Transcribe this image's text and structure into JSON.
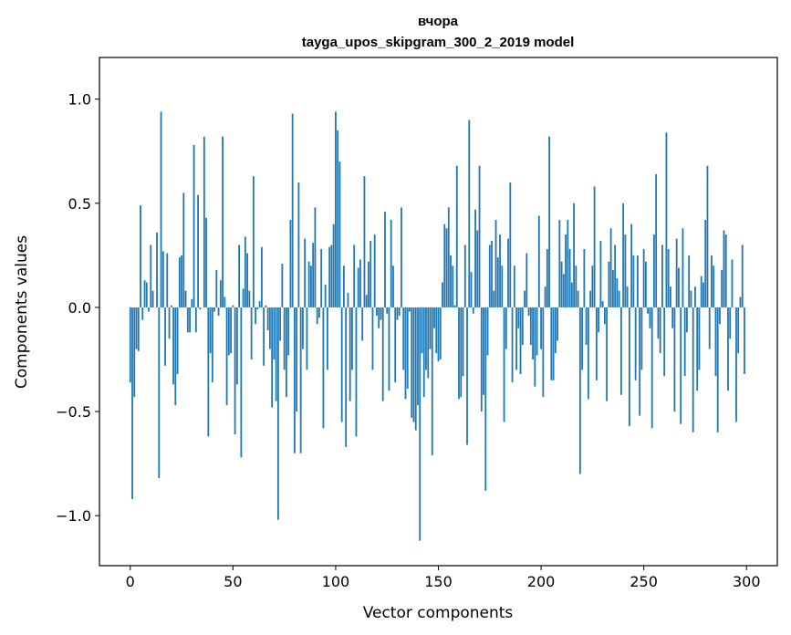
{
  "chart_data": {
    "type": "bar",
    "title": "вчора",
    "subtitle": "tayga_upos_skipgram_300_2_2019 model",
    "xlabel": "Vector components",
    "ylabel": "Components values",
    "xlim": [
      -15,
      315
    ],
    "ylim": [
      -1.24,
      1.2
    ],
    "xticks": [
      0,
      50,
      100,
      150,
      200,
      250,
      300
    ],
    "xtick_labels": [
      "0",
      "50",
      "100",
      "150",
      "200",
      "250",
      "300"
    ],
    "yticks": [
      -1.0,
      -0.5,
      0.0,
      0.5,
      1.0
    ],
    "ytick_labels": [
      "−1.0",
      "−0.5",
      "0.0",
      "0.5",
      "1.0"
    ],
    "grid": false,
    "bar_color": "#1f77b4",
    "series": [
      {
        "values": [
          -0.36,
          -0.92,
          -0.43,
          -0.2,
          -0.21,
          0.49,
          -0.06,
          0.13,
          0.12,
          -0.02,
          0.3,
          0.08,
          0.0,
          0.36,
          -0.82,
          0.94,
          0.27,
          -0.28,
          0.26,
          -0.15,
          0.01,
          -0.37,
          -0.47,
          -0.32,
          0.24,
          0.25,
          0.55,
          0.08,
          -0.12,
          -0.12,
          0.04,
          0.78,
          -0.12,
          0.54,
          -0.01,
          0.0,
          0.82,
          0.43,
          -0.62,
          -0.22,
          -0.36,
          -0.02,
          0.18,
          -0.04,
          0.13,
          0.82,
          0.05,
          -0.47,
          -0.23,
          -0.22,
          0.01,
          -0.61,
          -0.37,
          0.3,
          -0.72,
          0.09,
          0.34,
          0.26,
          0.08,
          -0.25,
          0.63,
          -0.08,
          -0.01,
          0.03,
          0.29,
          -0.28,
          0.01,
          -0.11,
          -0.2,
          -0.48,
          -0.25,
          -0.45,
          -1.02,
          -0.16,
          0.21,
          -0.3,
          -0.43,
          -0.23,
          0.42,
          0.93,
          -0.7,
          -0.5,
          0.6,
          -0.7,
          -0.2,
          0.33,
          -0.3,
          0.22,
          0.2,
          0.31,
          0.48,
          -0.08,
          -0.05,
          0.28,
          -0.58,
          0.11,
          -0.3,
          0.29,
          0.3,
          0.4,
          0.94,
          0.85,
          0.7,
          -0.55,
          0.2,
          -0.67,
          0.07,
          -0.45,
          -0.3,
          0.3,
          -0.62,
          0.19,
          0.23,
          -0.16,
          0.63,
          0.06,
          0.22,
          0.32,
          -0.3,
          0.35,
          -0.04,
          -0.1,
          -0.06,
          -0.45,
          0.46,
          -0.03,
          -0.4,
          0.42,
          0.2,
          -0.36,
          -0.06,
          -0.04,
          0.48,
          -0.3,
          -0.44,
          -0.39,
          -0.02,
          -0.53,
          -0.55,
          -0.59,
          -0.47,
          -1.12,
          -0.22,
          -0.43,
          -0.3,
          -0.34,
          -0.2,
          -0.71,
          -0.1,
          -0.22,
          -0.26,
          -0.25,
          0.12,
          0.4,
          0.38,
          0.48,
          0.25,
          0.2,
          0.01,
          0.68,
          -0.44,
          -0.43,
          -0.33,
          0.3,
          -0.66,
          0.9,
          0.17,
          -0.03,
          0.47,
          0.37,
          0.68,
          -0.5,
          -0.42,
          -0.88,
          -0.23,
          0.3,
          0.32,
          0.08,
          0.42,
          0.24,
          0.35,
          0.2,
          -0.55,
          -0.2,
          0.33,
          0.6,
          -0.36,
          0.2,
          -0.3,
          -0.1,
          -0.32,
          -0.18,
          0.08,
          0.26,
          -0.04,
          -0.18,
          -0.25,
          -0.38,
          -0.23,
          0.44,
          -0.2,
          -0.43,
          0.1,
          0.28,
          0.82,
          -0.35,
          -0.35,
          -0.22,
          -0.16,
          0.42,
          0.22,
          0.16,
          0.35,
          0.42,
          0.28,
          0.12,
          0.5,
          0.2,
          0.08,
          -0.8,
          -0.3,
          0.28,
          -0.18,
          -0.44,
          0.08,
          0.2,
          0.58,
          -0.35,
          -0.12,
          0.32,
          0.03,
          -0.08,
          -0.45,
          0.22,
          0.38,
          0.18,
          0.3,
          0.14,
          0.08,
          -0.42,
          0.5,
          0.35,
          0.1,
          -0.57,
          0.4,
          0.25,
          -0.35,
          0.25,
          -0.52,
          -0.3,
          0.28,
          0.22,
          -0.03,
          -0.1,
          -0.58,
          0.35,
          0.64,
          -0.15,
          -0.22,
          0.3,
          -0.33,
          0.84,
          0.28,
          0.1,
          -0.1,
          -0.5,
          0.33,
          0.19,
          -0.56,
          0.38,
          -0.33,
          -0.12,
          0.25,
          0.08,
          -0.6,
          0.1,
          -0.4,
          -0.3,
          0.15,
          0.12,
          0.42,
          0.68,
          -0.2,
          0.25,
          0.2,
          -0.33,
          -0.6,
          -0.08,
          0.18,
          0.37,
          0.35,
          -0.4,
          -0.15,
          0.23,
          0.0,
          -0.55,
          -0.22,
          0.05,
          0.3,
          -0.32
        ]
      }
    ]
  }
}
